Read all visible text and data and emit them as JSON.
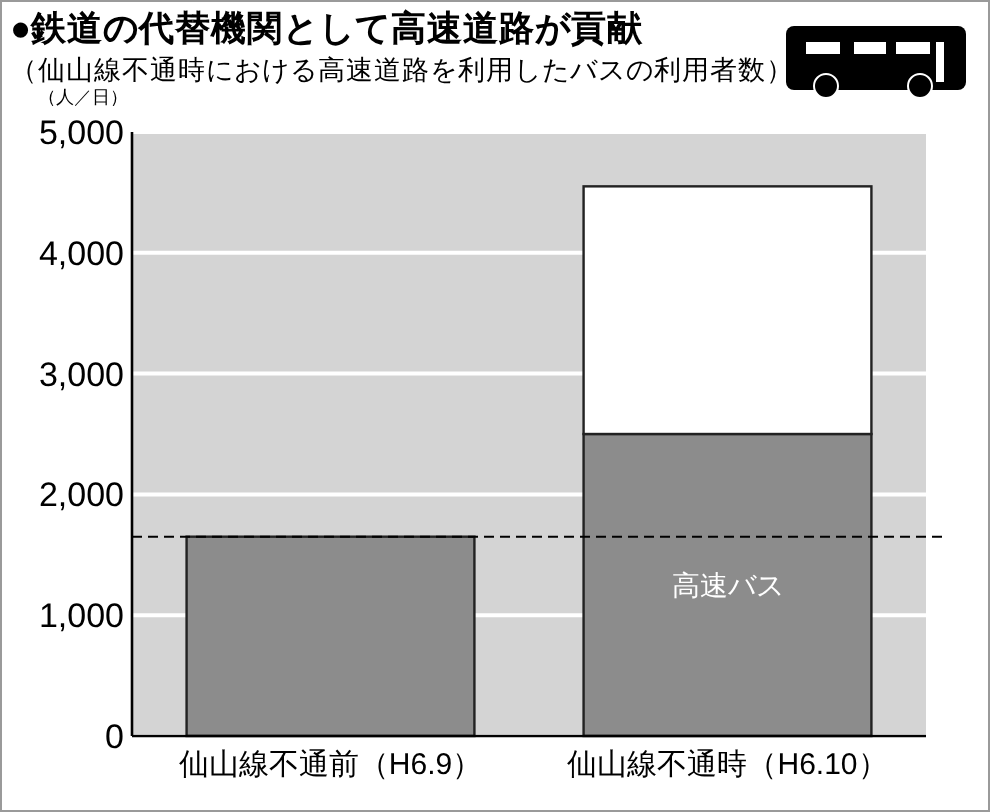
{
  "chart_data": {
    "type": "bar",
    "title": "●鉄道の代替機関として高速道路が貢献",
    "subtitle": "（仙山線不通時における高速道路を利用したバスの利用者数）",
    "ylabel": "（人／日）",
    "categories": [
      "仙山線不通前（H6.9）",
      "仙山線不通時（H6.10）"
    ],
    "stacked": true,
    "series": [
      {
        "name": "高速バス",
        "color": "#8c8c8c",
        "values": [
          1650,
          2500
        ]
      },
      {
        "color": "#ffffff",
        "values": [
          null,
          2050
        ]
      }
    ],
    "ylim": [
      0,
      5000
    ],
    "yticks": [
      0,
      {
        "value": 1000,
        "label": "1,000"
      },
      {
        "value": 2000,
        "label": "2,000"
      },
      {
        "value": 3000,
        "label": "3,000"
      },
      {
        "value": 4000,
        "label": "4,000"
      },
      {
        "value": 5000,
        "label": "5,000"
      }
    ],
    "grid": "y",
    "ref_lines": [
      {
        "axis": "y",
        "value": 1650,
        "color": "#000000",
        "line_style": "dashed"
      }
    ]
  }
}
